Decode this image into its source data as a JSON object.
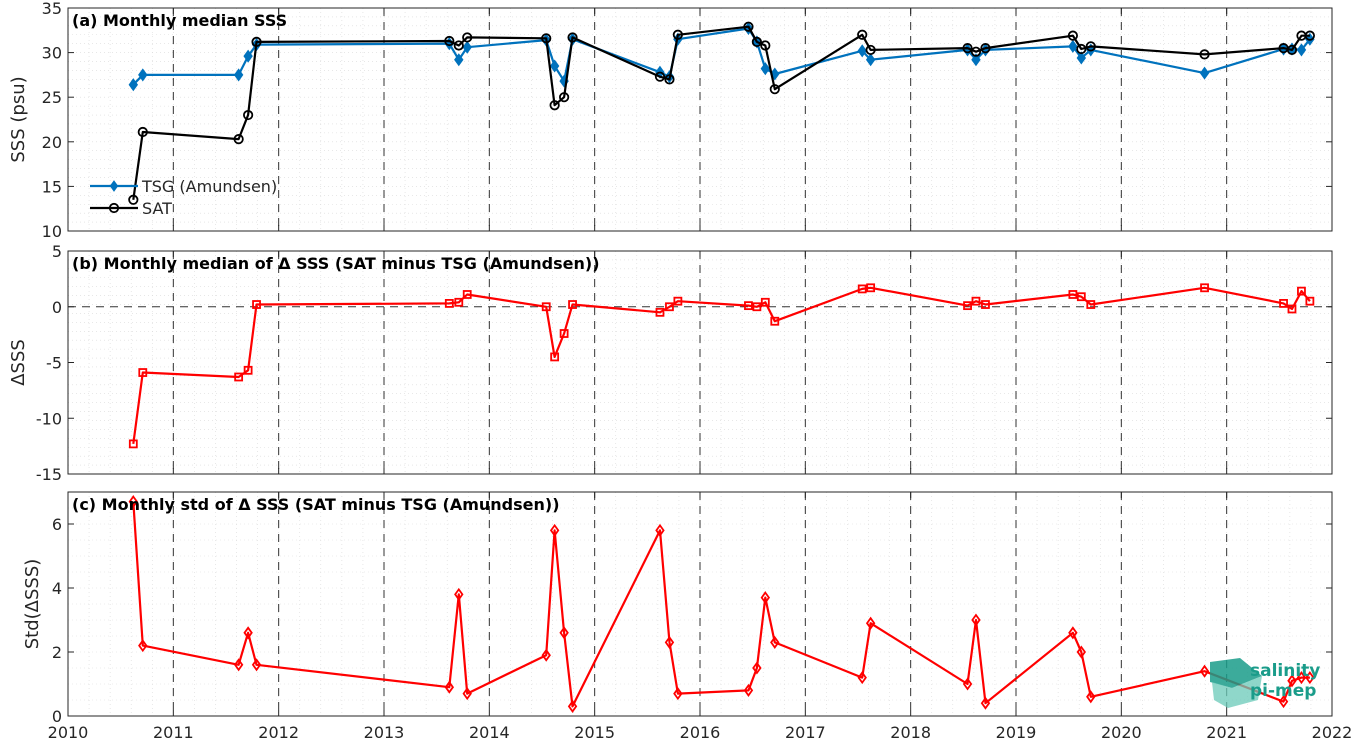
{
  "chart_data": [
    {
      "type": "line",
      "title": "(a) Monthly median SSS",
      "xlabel": "",
      "ylabel": "SSS (psu)",
      "xlim": [
        2010,
        2022
      ],
      "ylim": [
        10,
        35
      ],
      "yticks": [
        10,
        15,
        20,
        25,
        30,
        35
      ],
      "grid": true,
      "legend": "left",
      "series": [
        {
          "name": "TSG (Amundsen)",
          "color": "#0072BD",
          "marker": "diamond",
          "x": [
            2010.62,
            2010.71,
            2011.62,
            2011.71,
            2011.79,
            2013.62,
            2013.71,
            2013.79,
            2014.54,
            2014.62,
            2014.71,
            2014.79,
            2015.62,
            2015.71,
            2015.79,
            2016.46,
            2016.54,
            2016.62,
            2016.71,
            2017.54,
            2017.62,
            2018.54,
            2018.62,
            2018.71,
            2019.54,
            2019.62,
            2019.71,
            2020.79,
            2021.54,
            2021.62,
            2021.71,
            2021.79
          ],
          "y": [
            26.4,
            27.5,
            27.5,
            29.6,
            30.9,
            31.0,
            29.2,
            30.6,
            31.4,
            28.5,
            26.8,
            31.5,
            27.8,
            27.3,
            31.5,
            32.7,
            31.2,
            28.2,
            27.6,
            30.2,
            29.2,
            30.3,
            29.2,
            30.3,
            30.7,
            29.4,
            30.3,
            27.7,
            30.4,
            30.4,
            30.3,
            31.5
          ]
        },
        {
          "name": "SAT",
          "color": "#000000",
          "marker": "circle",
          "x": [
            2010.62,
            2010.71,
            2011.62,
            2011.71,
            2011.79,
            2013.62,
            2013.71,
            2013.79,
            2014.54,
            2014.62,
            2014.71,
            2014.79,
            2015.62,
            2015.71,
            2015.79,
            2016.46,
            2016.54,
            2016.62,
            2016.71,
            2017.54,
            2017.62,
            2018.54,
            2018.62,
            2018.71,
            2019.54,
            2019.62,
            2019.71,
            2020.79,
            2021.54,
            2021.62,
            2021.71,
            2021.79
          ],
          "y": [
            13.5,
            21.1,
            20.3,
            23.0,
            31.2,
            31.3,
            30.8,
            31.7,
            31.6,
            24.1,
            25.0,
            31.7,
            27.3,
            27.0,
            32.0,
            32.9,
            31.2,
            30.8,
            25.9,
            32.0,
            30.3,
            30.5,
            30.1,
            30.5,
            31.9,
            30.4,
            30.7,
            29.8,
            30.5,
            30.3,
            31.9,
            31.9
          ]
        }
      ]
    },
    {
      "type": "line",
      "title": "(b) Monthly median of Δ SSS (SAT minus TSG (Amundsen))",
      "xlabel": "",
      "ylabel": "ΔSSS",
      "xlim": [
        2010,
        2022
      ],
      "ylim": [
        -15,
        5
      ],
      "yticks": [
        -15,
        -10,
        -5,
        0,
        5
      ],
      "grid": true,
      "zero_line": true,
      "series": [
        {
          "color": "#FF0000",
          "marker": "square",
          "x": [
            2010.62,
            2010.71,
            2011.62,
            2011.71,
            2011.79,
            2013.62,
            2013.71,
            2013.79,
            2014.54,
            2014.62,
            2014.71,
            2014.79,
            2015.62,
            2015.71,
            2015.79,
            2016.46,
            2016.54,
            2016.62,
            2016.71,
            2017.54,
            2017.62,
            2018.54,
            2018.62,
            2018.71,
            2019.54,
            2019.62,
            2019.71,
            2020.79,
            2021.54,
            2021.62,
            2021.71,
            2021.79
          ],
          "y": [
            -12.3,
            -5.9,
            -6.3,
            -5.7,
            0.2,
            0.3,
            0.4,
            1.1,
            0.0,
            -4.5,
            -2.4,
            0.2,
            -0.5,
            0.0,
            0.5,
            0.1,
            0.0,
            0.4,
            -1.3,
            1.6,
            1.7,
            0.1,
            0.5,
            0.2,
            1.1,
            0.9,
            0.2,
            1.7,
            0.3,
            -0.2,
            1.4,
            0.5
          ]
        }
      ]
    },
    {
      "type": "line",
      "title": "(c) Monthly std of Δ SSS (SAT minus TSG (Amundsen))",
      "xlabel": "",
      "ylabel": "Std(ΔSSS)",
      "xlim": [
        2010,
        2022
      ],
      "ylim": [
        0,
        7
      ],
      "yticks": [
        0,
        2,
        4,
        6
      ],
      "xticks": [
        2010,
        2011,
        2012,
        2013,
        2014,
        2015,
        2016,
        2017,
        2018,
        2019,
        2020,
        2021,
        2022
      ],
      "grid": true,
      "series": [
        {
          "color": "#FF0000",
          "marker": "diamond",
          "x": [
            2010.62,
            2010.71,
            2011.62,
            2011.71,
            2011.79,
            2013.62,
            2013.71,
            2013.79,
            2014.54,
            2014.62,
            2014.71,
            2014.79,
            2015.62,
            2015.71,
            2015.79,
            2016.46,
            2016.54,
            2016.62,
            2016.71,
            2017.54,
            2017.62,
            2018.54,
            2018.62,
            2018.71,
            2019.54,
            2019.62,
            2019.71,
            2020.79,
            2021.54,
            2021.62,
            2021.71,
            2021.79
          ],
          "y": [
            6.7,
            2.2,
            1.6,
            2.6,
            1.6,
            0.9,
            3.8,
            0.7,
            1.9,
            5.8,
            2.6,
            0.3,
            5.8,
            2.3,
            0.7,
            0.8,
            1.5,
            3.7,
            2.3,
            1.2,
            2.9,
            1.0,
            3.0,
            0.4,
            2.6,
            2.0,
            0.6,
            1.4,
            0.45,
            1.1,
            1.2,
            1.2
          ]
        }
      ]
    }
  ],
  "logo": {
    "line1": "salinity",
    "line2": "pi-mep",
    "color": "#1a9c8a"
  }
}
